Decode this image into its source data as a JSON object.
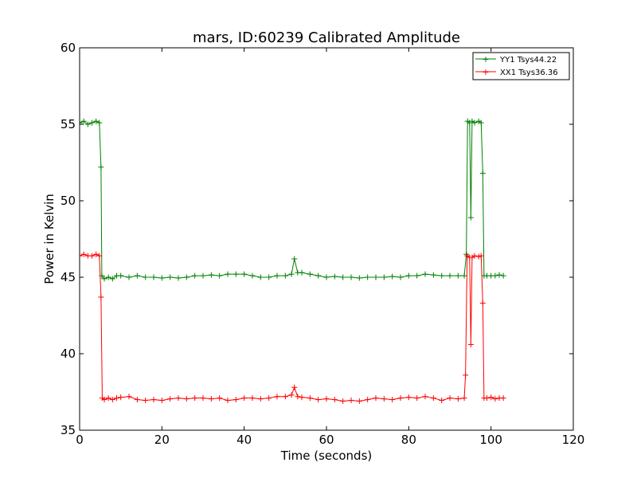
{
  "chart_data": {
    "type": "line",
    "title": "mars, ID:60239 Calibrated Amplitude",
    "xlabel": "Time (seconds)",
    "ylabel": "Power in Kelvin",
    "xlim": [
      0,
      120
    ],
    "ylim": [
      35,
      60
    ],
    "xticks": [
      "0",
      "20",
      "40",
      "60",
      "80",
      "100",
      "120"
    ],
    "yticks": [
      "35",
      "40",
      "45",
      "50",
      "55",
      "60"
    ],
    "grid": false,
    "legend_position": "top-right",
    "series": [
      {
        "name": "YY1 Tsys44.22",
        "color": "#008000",
        "marker": "+",
        "points": [
          [
            0,
            55.1
          ],
          [
            1,
            55.2
          ],
          [
            2,
            55.0
          ],
          [
            3,
            55.1
          ],
          [
            4,
            55.2
          ],
          [
            4.8,
            55.1
          ],
          [
            5.2,
            52.2
          ],
          [
            5.4,
            45.1
          ],
          [
            6,
            44.9
          ],
          [
            7,
            45.0
          ],
          [
            8,
            44.9
          ],
          [
            9,
            45.1
          ],
          [
            10,
            45.1
          ],
          [
            12,
            45.0
          ],
          [
            14,
            45.1
          ],
          [
            16,
            45.0
          ],
          [
            18,
            45.0
          ],
          [
            20,
            44.95
          ],
          [
            22,
            45.0
          ],
          [
            24,
            44.95
          ],
          [
            26,
            45.0
          ],
          [
            28,
            45.1
          ],
          [
            30,
            45.1
          ],
          [
            32,
            45.15
          ],
          [
            34,
            45.1
          ],
          [
            36,
            45.2
          ],
          [
            38,
            45.2
          ],
          [
            40,
            45.2
          ],
          [
            42,
            45.1
          ],
          [
            44,
            45.0
          ],
          [
            46,
            45.0
          ],
          [
            48,
            45.1
          ],
          [
            50,
            45.1
          ],
          [
            51.5,
            45.2
          ],
          [
            52.2,
            46.2
          ],
          [
            53,
            45.3
          ],
          [
            54,
            45.3
          ],
          [
            56,
            45.2
          ],
          [
            58,
            45.1
          ],
          [
            60,
            45.0
          ],
          [
            62,
            45.05
          ],
          [
            64,
            45.0
          ],
          [
            66,
            45.0
          ],
          [
            68,
            44.95
          ],
          [
            70,
            45.0
          ],
          [
            72,
            45.0
          ],
          [
            74,
            45.0
          ],
          [
            76,
            45.05
          ],
          [
            78,
            45.0
          ],
          [
            80,
            45.1
          ],
          [
            82,
            45.1
          ],
          [
            84,
            45.2
          ],
          [
            86,
            45.15
          ],
          [
            88,
            45.1
          ],
          [
            90,
            45.1
          ],
          [
            92,
            45.1
          ],
          [
            93.5,
            45.1
          ],
          [
            94,
            46.5
          ],
          [
            94.3,
            55.2
          ],
          [
            94.8,
            55.1
          ],
          [
            95.1,
            48.9
          ],
          [
            95.4,
            55.2
          ],
          [
            96,
            55.1
          ],
          [
            97,
            55.2
          ],
          [
            97.6,
            55.1
          ],
          [
            98,
            51.8
          ],
          [
            98.3,
            45.1
          ],
          [
            99,
            45.1
          ],
          [
            100,
            45.1
          ],
          [
            101,
            45.1
          ],
          [
            102,
            45.15
          ],
          [
            103,
            45.1
          ]
        ]
      },
      {
        "name": "XX1 Tsys36.36",
        "color": "#ff0000",
        "marker": "+",
        "points": [
          [
            0,
            46.4
          ],
          [
            1,
            46.5
          ],
          [
            2,
            46.4
          ],
          [
            3,
            46.4
          ],
          [
            4,
            46.5
          ],
          [
            4.8,
            46.4
          ],
          [
            5.2,
            43.7
          ],
          [
            5.5,
            37.1
          ],
          [
            6,
            37.0
          ],
          [
            7,
            37.1
          ],
          [
            8,
            37.0
          ],
          [
            9,
            37.1
          ],
          [
            10,
            37.15
          ],
          [
            12,
            37.2
          ],
          [
            14,
            37.0
          ],
          [
            16,
            36.95
          ],
          [
            18,
            37.0
          ],
          [
            20,
            36.95
          ],
          [
            22,
            37.05
          ],
          [
            24,
            37.1
          ],
          [
            26,
            37.05
          ],
          [
            28,
            37.1
          ],
          [
            30,
            37.1
          ],
          [
            32,
            37.05
          ],
          [
            34,
            37.1
          ],
          [
            36,
            36.95
          ],
          [
            38,
            37.0
          ],
          [
            40,
            37.1
          ],
          [
            42,
            37.1
          ],
          [
            44,
            37.05
          ],
          [
            46,
            37.1
          ],
          [
            48,
            37.2
          ],
          [
            50,
            37.2
          ],
          [
            51.5,
            37.3
          ],
          [
            52.2,
            37.8
          ],
          [
            53,
            37.2
          ],
          [
            54,
            37.15
          ],
          [
            56,
            37.1
          ],
          [
            58,
            37.0
          ],
          [
            60,
            37.05
          ],
          [
            62,
            37.0
          ],
          [
            64,
            36.9
          ],
          [
            66,
            36.95
          ],
          [
            68,
            36.9
          ],
          [
            70,
            37.0
          ],
          [
            72,
            37.1
          ],
          [
            74,
            37.05
          ],
          [
            76,
            37.0
          ],
          [
            78,
            37.1
          ],
          [
            80,
            37.15
          ],
          [
            82,
            37.1
          ],
          [
            84,
            37.2
          ],
          [
            86,
            37.1
          ],
          [
            88,
            36.95
          ],
          [
            90,
            37.1
          ],
          [
            92,
            37.05
          ],
          [
            93.5,
            37.1
          ],
          [
            93.8,
            38.6
          ],
          [
            94.2,
            46.4
          ],
          [
            94.8,
            46.3
          ],
          [
            95.1,
            40.6
          ],
          [
            95.4,
            46.3
          ],
          [
            96,
            46.4
          ],
          [
            97,
            46.35
          ],
          [
            97.6,
            46.4
          ],
          [
            98,
            43.3
          ],
          [
            98.3,
            37.1
          ],
          [
            99,
            37.1
          ],
          [
            100,
            37.15
          ],
          [
            101,
            37.05
          ],
          [
            102,
            37.1
          ],
          [
            103,
            37.1
          ]
        ]
      }
    ]
  }
}
